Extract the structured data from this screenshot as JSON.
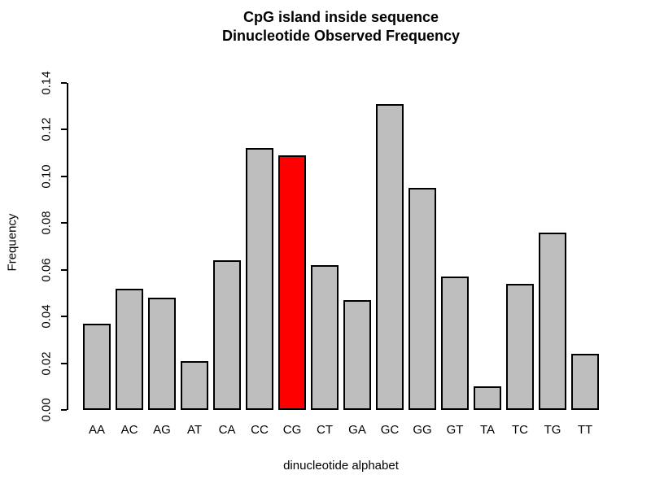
{
  "chart_data": {
    "type": "bar",
    "title_line1": "CpG island inside sequence",
    "title_line2": "Dinucleotide Observed Frequency",
    "xlabel": "dinucleotide alphabet",
    "ylabel": "Frequency",
    "categories": [
      "AA",
      "AC",
      "AG",
      "AT",
      "CA",
      "CC",
      "CG",
      "CT",
      "GA",
      "GC",
      "GG",
      "GT",
      "TA",
      "TC",
      "TG",
      "TT"
    ],
    "values": [
      0.037,
      0.052,
      0.048,
      0.021,
      0.064,
      0.112,
      0.109,
      0.062,
      0.047,
      0.131,
      0.095,
      0.057,
      0.01,
      0.054,
      0.076,
      0.024
    ],
    "highlighted_category": "CG",
    "bar_color": "#BEBEBE",
    "highlight_color": "#FF0000",
    "bar_border_color": "#000000",
    "ylim": [
      0,
      0.14
    ],
    "yticks": [
      "0.00",
      "0.02",
      "0.04",
      "0.06",
      "0.08",
      "0.10",
      "0.12",
      "0.14"
    ],
    "grid": false,
    "legend": null
  }
}
